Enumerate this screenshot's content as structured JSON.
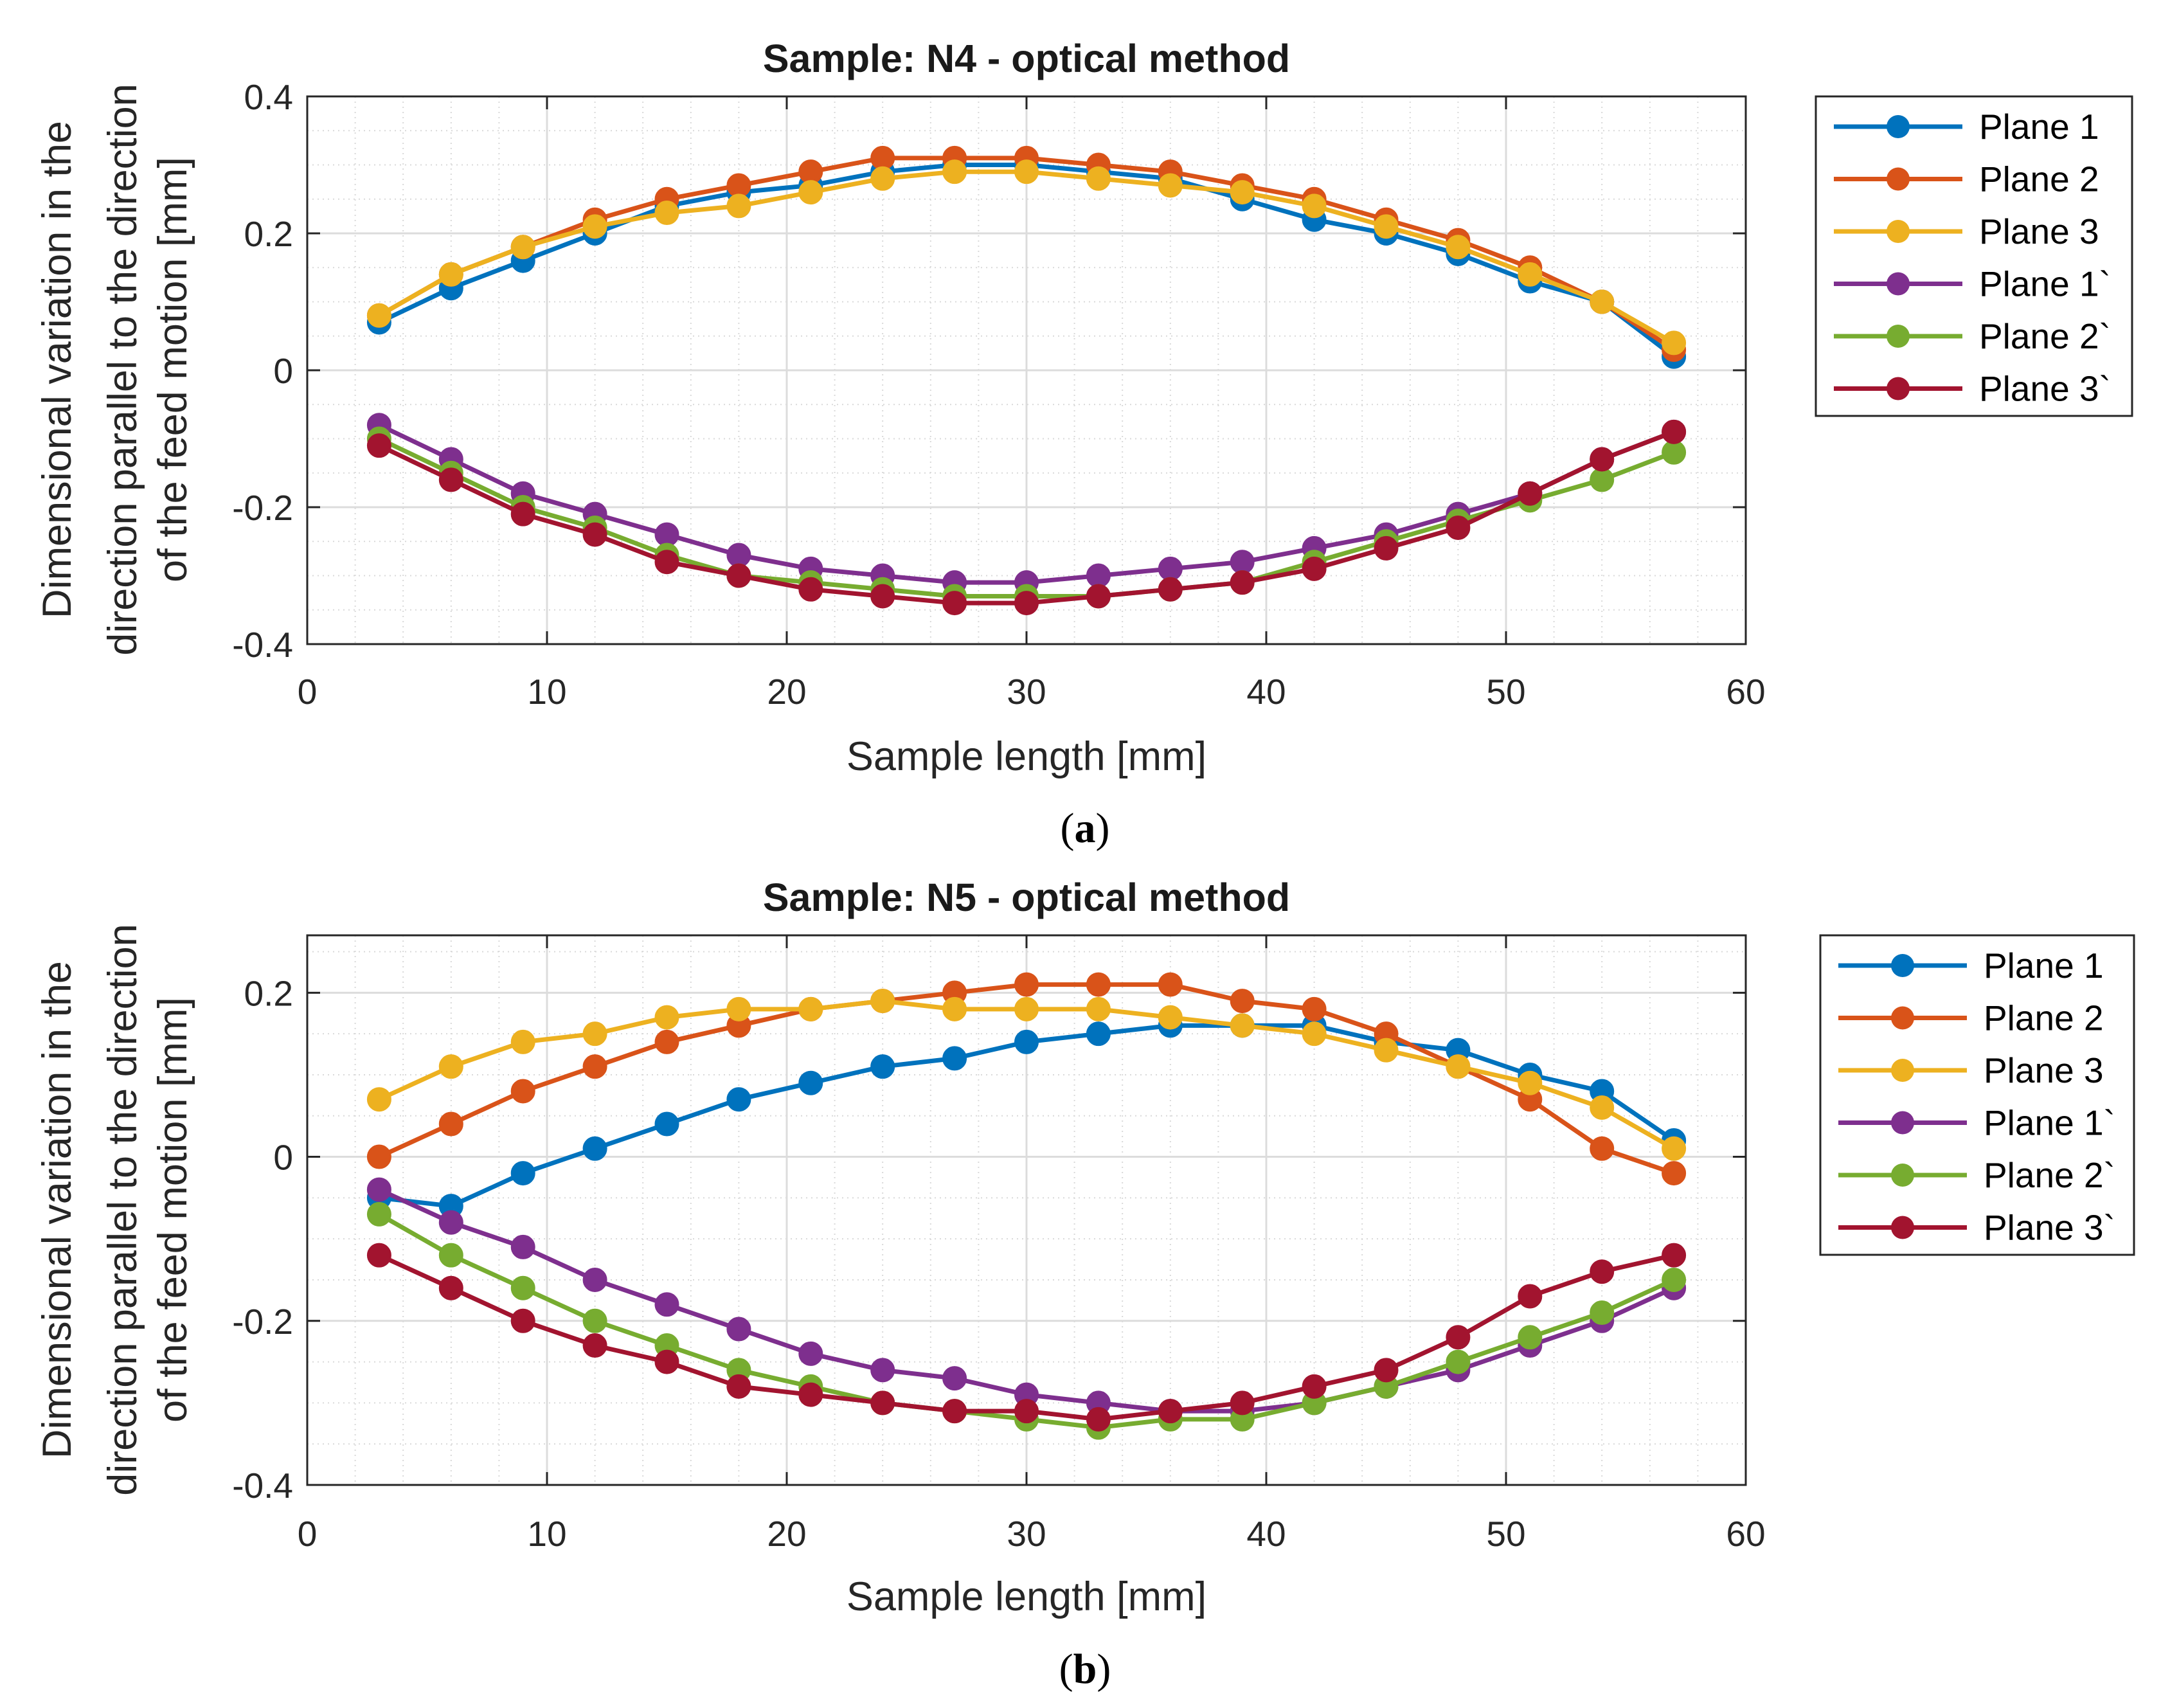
{
  "chart_data": [
    {
      "type": "line",
      "title": "Sample: N4 - optical method",
      "xlabel": "Sample length [mm]",
      "ylabel_lines": [
        "Dimensional variation in the",
        "direction parallel to the direction",
        "of the feed motion [mm]"
      ],
      "xlim": [
        0,
        60
      ],
      "ylim": [
        -0.4,
        0.4
      ],
      "xticks": [
        0,
        10,
        20,
        30,
        40,
        50,
        60
      ],
      "xtick_labels": [
        "0",
        "10",
        "20",
        "30",
        "40",
        "50",
        "60"
      ],
      "yticks": [
        -0.4,
        -0.2,
        0,
        0.2,
        0.4
      ],
      "ytick_labels": [
        "-0.4",
        "-0.2",
        "0",
        "0.2",
        "0.4"
      ],
      "grid": true,
      "legend_position": "outside-right-top",
      "caption_letter": "a",
      "caption_paren_open": "(",
      "caption_paren_close": ")",
      "x": [
        3,
        6,
        9,
        12,
        15,
        18,
        21,
        24,
        27,
        30,
        33,
        36,
        39,
        42,
        45,
        48,
        51,
        54,
        57
      ],
      "series": [
        {
          "name": "Plane 1",
          "color": "#0072BD",
          "values": [
            0.07,
            0.12,
            0.16,
            0.2,
            0.24,
            0.26,
            0.27,
            0.29,
            0.3,
            0.3,
            0.29,
            0.28,
            0.25,
            0.22,
            0.2,
            0.17,
            0.13,
            0.1,
            0.02
          ]
        },
        {
          "name": "Plane 2",
          "color": "#D95319",
          "values": [
            0.08,
            0.14,
            0.18,
            0.22,
            0.25,
            0.27,
            0.29,
            0.31,
            0.31,
            0.31,
            0.3,
            0.29,
            0.27,
            0.25,
            0.22,
            0.19,
            0.15,
            0.1,
            0.03
          ]
        },
        {
          "name": "Plane 3",
          "color": "#EDB120",
          "values": [
            0.08,
            0.14,
            0.18,
            0.21,
            0.23,
            0.24,
            0.26,
            0.28,
            0.29,
            0.29,
            0.28,
            0.27,
            0.26,
            0.24,
            0.21,
            0.18,
            0.14,
            0.1,
            0.04
          ]
        },
        {
          "name": "Plane 1`",
          "color": "#7E2F8E",
          "values": [
            -0.08,
            -0.13,
            -0.18,
            -0.21,
            -0.24,
            -0.27,
            -0.29,
            -0.3,
            -0.31,
            -0.31,
            -0.3,
            -0.29,
            -0.28,
            -0.26,
            -0.24,
            -0.21,
            -0.18,
            -0.13,
            -0.09
          ]
        },
        {
          "name": "Plane 2`",
          "color": "#77AC30",
          "values": [
            -0.1,
            -0.15,
            -0.2,
            -0.23,
            -0.27,
            -0.3,
            -0.31,
            -0.32,
            -0.33,
            -0.33,
            -0.33,
            -0.32,
            -0.31,
            -0.28,
            -0.25,
            -0.22,
            -0.19,
            -0.16,
            -0.12
          ]
        },
        {
          "name": "Plane 3`",
          "color": "#A2142F",
          "values": [
            -0.11,
            -0.16,
            -0.21,
            -0.24,
            -0.28,
            -0.3,
            -0.32,
            -0.33,
            -0.34,
            -0.34,
            -0.33,
            -0.32,
            -0.31,
            -0.29,
            -0.26,
            -0.23,
            -0.18,
            -0.13,
            -0.09
          ]
        }
      ]
    },
    {
      "type": "line",
      "title": "Sample: N5 - optical method",
      "xlabel": "Sample length [mm]",
      "ylabel_lines": [
        "Dimensional variation in the",
        "direction parallel to the direction",
        "of the feed motion [mm]"
      ],
      "xlim": [
        0,
        60
      ],
      "ylim": [
        -0.4,
        0.27
      ],
      "xticks": [
        0,
        10,
        20,
        30,
        40,
        50,
        60
      ],
      "xtick_labels": [
        "0",
        "10",
        "20",
        "30",
        "40",
        "50",
        "60"
      ],
      "yticks": [
        -0.4,
        -0.2,
        0,
        0.2
      ],
      "ytick_labels": [
        "-0.4",
        "-0.2",
        "0",
        "0.2"
      ],
      "grid": true,
      "legend_position": "outside-right-top",
      "caption_letter": "b",
      "caption_paren_open": "(",
      "caption_paren_close": ")",
      "x": [
        3,
        6,
        9,
        12,
        15,
        18,
        21,
        24,
        27,
        30,
        33,
        36,
        39,
        42,
        45,
        48,
        51,
        54,
        57
      ],
      "series": [
        {
          "name": "Plane 1",
          "color": "#0072BD",
          "values": [
            -0.05,
            -0.06,
            -0.02,
            0.01,
            0.04,
            0.07,
            0.09,
            0.11,
            0.12,
            0.14,
            0.15,
            0.16,
            0.16,
            0.16,
            0.14,
            0.13,
            0.1,
            0.08,
            0.02
          ]
        },
        {
          "name": "Plane 2",
          "color": "#D95319",
          "values": [
            0.0,
            0.04,
            0.08,
            0.11,
            0.14,
            0.16,
            0.18,
            0.19,
            0.2,
            0.21,
            0.21,
            0.21,
            0.19,
            0.18,
            0.15,
            0.11,
            0.07,
            0.01,
            -0.02
          ]
        },
        {
          "name": "Plane 3",
          "color": "#EDB120",
          "values": [
            0.07,
            0.11,
            0.14,
            0.15,
            0.17,
            0.18,
            0.18,
            0.19,
            0.18,
            0.18,
            0.18,
            0.17,
            0.16,
            0.15,
            0.13,
            0.11,
            0.09,
            0.06,
            0.01
          ]
        },
        {
          "name": "Plane 1`",
          "color": "#7E2F8E",
          "values": [
            -0.04,
            -0.08,
            -0.11,
            -0.15,
            -0.18,
            -0.21,
            -0.24,
            -0.26,
            -0.27,
            -0.29,
            -0.3,
            -0.31,
            -0.31,
            -0.3,
            -0.28,
            -0.26,
            -0.23,
            -0.2,
            -0.16
          ]
        },
        {
          "name": "Plane 2`",
          "color": "#77AC30",
          "values": [
            -0.07,
            -0.12,
            -0.16,
            -0.2,
            -0.23,
            -0.26,
            -0.28,
            -0.3,
            -0.31,
            -0.32,
            -0.33,
            -0.32,
            -0.32,
            -0.3,
            -0.28,
            -0.25,
            -0.22,
            -0.19,
            -0.15
          ]
        },
        {
          "name": "Plane 3`",
          "color": "#A2142F",
          "values": [
            -0.12,
            -0.16,
            -0.2,
            -0.23,
            -0.25,
            -0.28,
            -0.29,
            -0.3,
            -0.31,
            -0.31,
            -0.32,
            -0.31,
            -0.3,
            -0.28,
            -0.26,
            -0.22,
            -0.17,
            -0.14,
            -0.12
          ]
        }
      ]
    }
  ]
}
